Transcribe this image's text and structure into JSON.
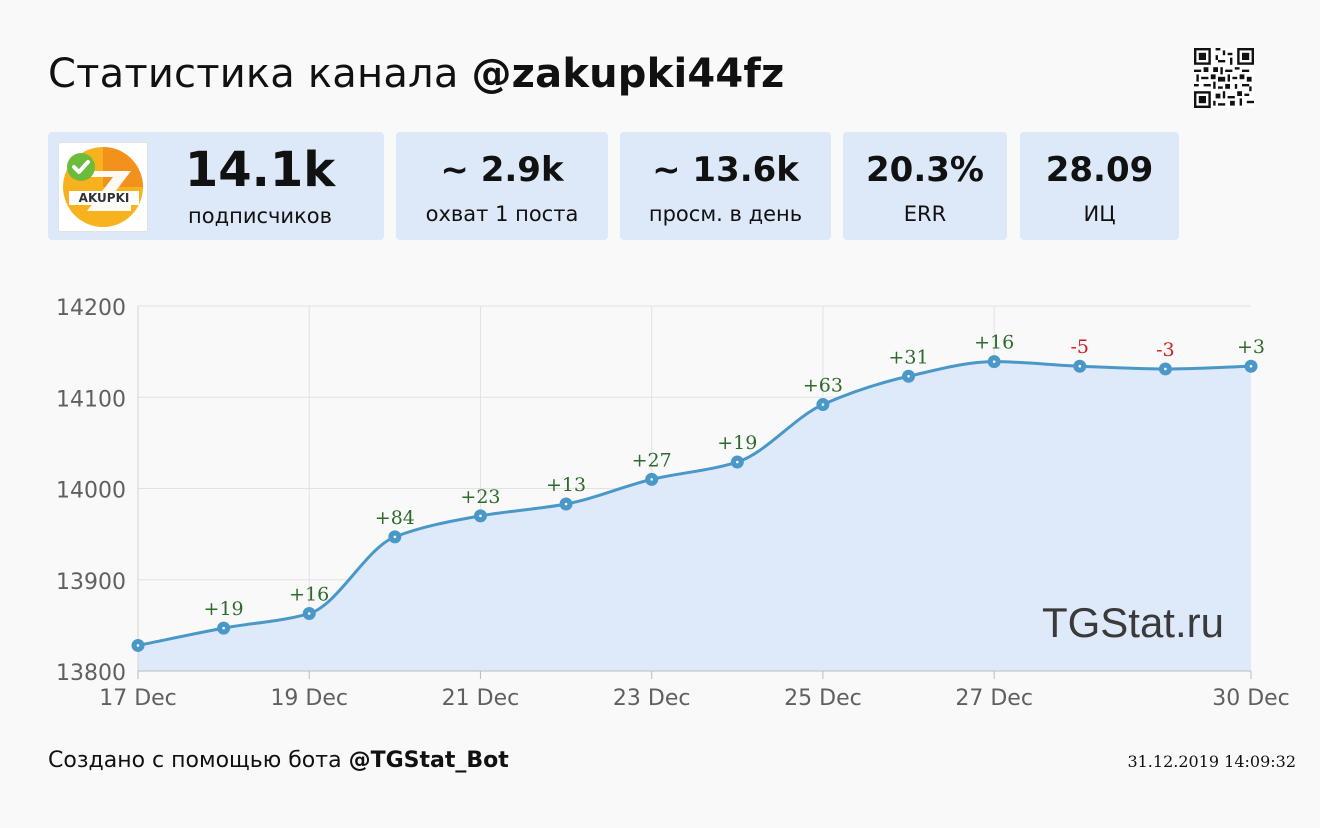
{
  "header": {
    "title_prefix": "Статистика канала",
    "channel": "@zakupki44fz"
  },
  "logo": {
    "text": "AKUPKI",
    "icon": "zakupki-logo-icon"
  },
  "stats": [
    {
      "value": "14.1k",
      "label": "подписчиков"
    },
    {
      "value": "~ 2.9k",
      "label": "охват 1 поста"
    },
    {
      "value": "~ 13.6k",
      "label": "просм. в день"
    },
    {
      "value": "20.3%",
      "label": "ERR"
    },
    {
      "value": "28.09",
      "label": "ИЦ"
    }
  ],
  "chart_data": {
    "type": "area",
    "x": [
      "17 Dec",
      "18 Dec",
      "19 Dec",
      "20 Dec",
      "21 Dec",
      "22 Dec",
      "23 Dec",
      "24 Dec",
      "25 Dec",
      "26 Dec",
      "27 Dec",
      "28 Dec",
      "29 Dec",
      "30 Dec"
    ],
    "values": [
      13828,
      13847,
      13863,
      13947,
      13970,
      13983,
      14010,
      14029,
      14092,
      14123,
      14139,
      14134,
      14131,
      14134
    ],
    "point_labels": [
      "",
      "+19",
      "+16",
      "+84",
      "+23",
      "+13",
      "+27",
      "+19",
      "+63",
      "+31",
      "+16",
      "-5",
      "-3",
      "+3"
    ],
    "x_tick_labels": [
      "17 Dec",
      "19 Dec",
      "21 Dec",
      "23 Dec",
      "25 Dec",
      "27 Dec",
      "30 Dec"
    ],
    "y_ticks": [
      "14200",
      "14100",
      "14000",
      "13900",
      "13800"
    ],
    "ylim": [
      13800,
      14200
    ],
    "grid": true,
    "colors": {
      "line": "#4a98c8",
      "fill": "#deeafa",
      "positive": "#2e6b2b",
      "negative": "#cc1f1f",
      "grid": "#e2e2e2"
    }
  },
  "watermark": "TGStat.ru",
  "footer": {
    "prefix": "Создано с помощью бота",
    "bot": "@TGStat_Bot",
    "timestamp": "31.12.2019 14:09:32"
  }
}
